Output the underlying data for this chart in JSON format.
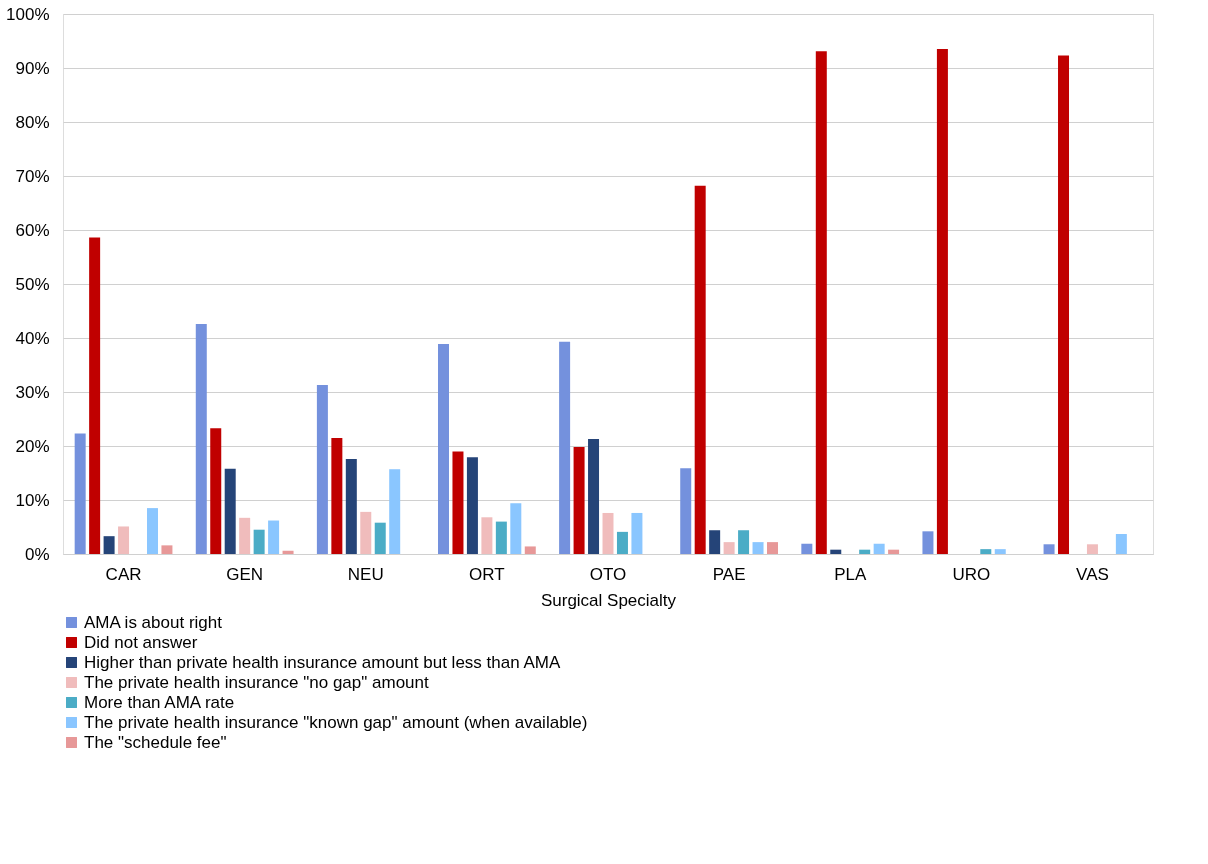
{
  "chart_data": {
    "type": "bar",
    "xlabel": "Surgical Specialty",
    "categories": [
      "CAR",
      "GEN",
      "NEU",
      "ORT",
      "OTO",
      "PAE",
      "PLA",
      "URO",
      "VAS"
    ],
    "ylim": [
      0,
      100
    ],
    "yticks": [
      {
        "value": 0,
        "label": "0%"
      },
      {
        "value": 10,
        "label": "10%"
      },
      {
        "value": 20,
        "label": "20%"
      },
      {
        "value": 30,
        "label": "30%"
      },
      {
        "value": 40,
        "label": "40%"
      },
      {
        "value": 50,
        "label": "50%"
      },
      {
        "value": 60,
        "label": "60%"
      },
      {
        "value": 70,
        "label": "70%"
      },
      {
        "value": 80,
        "label": "80%"
      },
      {
        "value": 90,
        "label": "90%"
      },
      {
        "value": 100,
        "label": "100%"
      }
    ],
    "grid": "y",
    "legend": "bottom",
    "series": [
      {
        "name": "AMA is about right",
        "color": "#7491dd",
        "values": [
          22.3,
          42.6,
          31.3,
          38.9,
          39.3,
          15.9,
          1.9,
          4.2,
          1.8
        ]
      },
      {
        "name": "Did not answer",
        "color": "#c00000",
        "values": [
          58.6,
          23.3,
          21.5,
          19.0,
          19.8,
          68.2,
          93.1,
          93.5,
          92.3
        ]
      },
      {
        "name": "Higher than private health insurance amount but less than AMA",
        "color": "#254478",
        "values": [
          3.3,
          15.8,
          17.6,
          17.9,
          21.3,
          4.4,
          0.8,
          0,
          0
        ]
      },
      {
        "name": "The private health insurance \"no gap\" amount",
        "color": "#f0bcbc",
        "values": [
          5.1,
          6.7,
          7.8,
          6.8,
          7.6,
          2.2,
          0,
          0,
          1.8
        ]
      },
      {
        "name": "More than AMA rate",
        "color": "#4bacc6",
        "values": [
          0,
          4.5,
          5.8,
          6.0,
          4.1,
          4.4,
          0.8,
          0.9,
          0
        ]
      },
      {
        "name": "The private health insurance \"known gap\" amount (when available)",
        "color": "#8ac6ff",
        "values": [
          8.5,
          6.2,
          15.7,
          9.4,
          7.6,
          2.2,
          1.9,
          0.9,
          3.7
        ]
      },
      {
        "name": "The \"schedule fee\"",
        "color": "#e79898",
        "values": [
          1.6,
          0.6,
          0,
          1.4,
          0,
          2.2,
          0.8,
          0,
          0
        ]
      }
    ]
  }
}
